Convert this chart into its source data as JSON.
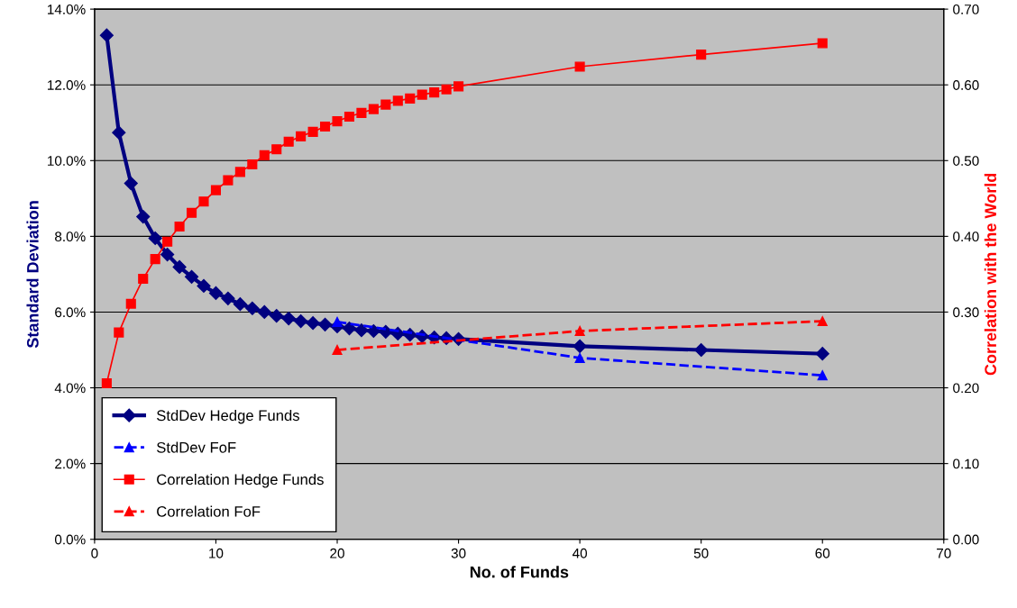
{
  "chart_data": {
    "type": "line",
    "xlabel": "No. of Funds",
    "ylabel": "Standard Deviation",
    "y2label": "Correlation with the World",
    "xlim": [
      0,
      70
    ],
    "xticks": [
      0,
      10,
      20,
      30,
      40,
      50,
      60,
      70
    ],
    "ylim": [
      0,
      14
    ],
    "yticks": [
      {
        "value": 0,
        "label": "0.0%"
      },
      {
        "value": 2,
        "label": "2.0%"
      },
      {
        "value": 4,
        "label": "4.0%"
      },
      {
        "value": 6,
        "label": "6.0%"
      },
      {
        "value": 8,
        "label": "8.0%"
      },
      {
        "value": 10,
        "label": "10.0%"
      },
      {
        "value": 12,
        "label": "12.0%"
      },
      {
        "value": 14,
        "label": "14.0%"
      }
    ],
    "y2lim": [
      0,
      0.7
    ],
    "y2ticks": [
      {
        "value": 0,
        "label": "0.00"
      },
      {
        "value": 0.1,
        "label": "0.10"
      },
      {
        "value": 0.2,
        "label": "0.20"
      },
      {
        "value": 0.3,
        "label": "0.30"
      },
      {
        "value": 0.4,
        "label": "0.40"
      },
      {
        "value": 0.5,
        "label": "0.50"
      },
      {
        "value": 0.6,
        "label": "0.60"
      },
      {
        "value": 0.7,
        "label": "0.70"
      }
    ],
    "grid": "y",
    "legend": "bottom left",
    "series": [
      {
        "name": "StdDev Hedge Funds",
        "color": "#000080",
        "marker": "diamond",
        "line_style": "solid",
        "x": [
          1,
          2,
          3,
          4,
          5,
          6,
          7,
          8,
          9,
          10,
          11,
          12,
          13,
          14,
          15,
          16,
          17,
          18,
          19,
          20,
          21,
          22,
          23,
          24,
          25,
          26,
          27,
          28,
          29,
          30,
          40,
          50,
          60
        ],
        "values": [
          13.31,
          10.74,
          9.4,
          8.52,
          7.95,
          7.52,
          7.19,
          6.93,
          6.69,
          6.5,
          6.36,
          6.21,
          6.1,
          6.0,
          5.9,
          5.83,
          5.76,
          5.71,
          5.67,
          5.62,
          5.57,
          5.52,
          5.5,
          5.48,
          5.43,
          5.4,
          5.36,
          5.33,
          5.31,
          5.29,
          5.1,
          5.0,
          4.9
        ]
      },
      {
        "name": "StdDev FoF",
        "color": "#0000ff",
        "marker": "triangle",
        "line_style": "dashed",
        "x": [
          20,
          40,
          60
        ],
        "values": [
          5.74,
          4.79,
          4.33
        ]
      },
      {
        "name": "Correlation Hedge Funds",
        "color": "#ff0000",
        "marker": "square",
        "line_style": "solid",
        "axis": "y2",
        "x": [
          1,
          2,
          3,
          4,
          5,
          6,
          7,
          8,
          9,
          10,
          11,
          12,
          13,
          14,
          15,
          16,
          17,
          18,
          19,
          20,
          21,
          22,
          23,
          24,
          25,
          26,
          27,
          28,
          29,
          30,
          40,
          50,
          60
        ],
        "values": [
          0.206,
          0.273,
          0.311,
          0.344,
          0.37,
          0.393,
          0.413,
          0.431,
          0.446,
          0.461,
          0.474,
          0.485,
          0.495,
          0.507,
          0.515,
          0.525,
          0.532,
          0.538,
          0.545,
          0.552,
          0.558,
          0.563,
          0.568,
          0.574,
          0.579,
          0.582,
          0.587,
          0.59,
          0.594,
          0.598,
          0.624,
          0.64,
          0.655
        ]
      },
      {
        "name": "Correlation FoF",
        "color": "#ff0000",
        "marker": "triangle",
        "line_style": "dashed",
        "axis": "y2",
        "x": [
          20,
          40,
          60
        ],
        "values": [
          0.25,
          0.275,
          0.288
        ]
      }
    ]
  }
}
